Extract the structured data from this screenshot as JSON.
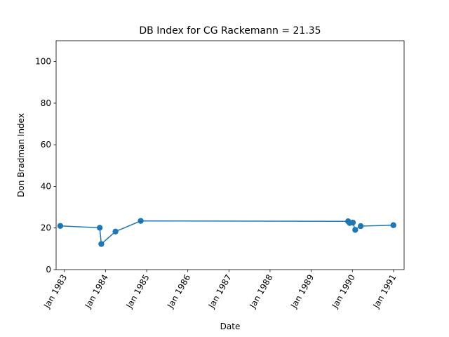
{
  "chart_data": {
    "type": "line",
    "title": "DB Index for CG Rackemann = 21.35",
    "xlabel": "Date",
    "ylabel": "Don Bradman Index",
    "ylim": [
      0,
      110
    ],
    "xlim": [
      "1982-10-20",
      "1991-04-05"
    ],
    "grid": false,
    "legend": "none",
    "color": "#1f77b4",
    "yticks": [
      0,
      20,
      40,
      60,
      80,
      100
    ],
    "xticks": [
      {
        "date": "1983-01-01",
        "label": "Jan 1983"
      },
      {
        "date": "1984-01-01",
        "label": "Jan 1984"
      },
      {
        "date": "1985-01-01",
        "label": "Jan 1985"
      },
      {
        "date": "1986-01-01",
        "label": "Jan 1986"
      },
      {
        "date": "1987-01-01",
        "label": "Jan 1987"
      },
      {
        "date": "1988-01-01",
        "label": "Jan 1988"
      },
      {
        "date": "1989-01-01",
        "label": "Jan 1989"
      },
      {
        "date": "1990-01-01",
        "label": "Jan 1990"
      },
      {
        "date": "1991-01-01",
        "label": "Jan 1991"
      }
    ],
    "series": [
      {
        "points": [
          {
            "x": "1982-11-26",
            "y": 21.0
          },
          {
            "x": "1983-11-11",
            "y": 20.1
          },
          {
            "x": "1983-11-25",
            "y": 12.3
          },
          {
            "x": "1984-03-30",
            "y": 18.3
          },
          {
            "x": "1984-11-09",
            "y": 23.4
          },
          {
            "x": "1989-11-24",
            "y": 23.2
          },
          {
            "x": "1989-12-08",
            "y": 22.4
          },
          {
            "x": "1990-01-05",
            "y": 22.6
          },
          {
            "x": "1990-01-26",
            "y": 19.1
          },
          {
            "x": "1990-03-16",
            "y": 20.9
          },
          {
            "x": "1990-12-31",
            "y": 21.35
          }
        ]
      }
    ]
  }
}
